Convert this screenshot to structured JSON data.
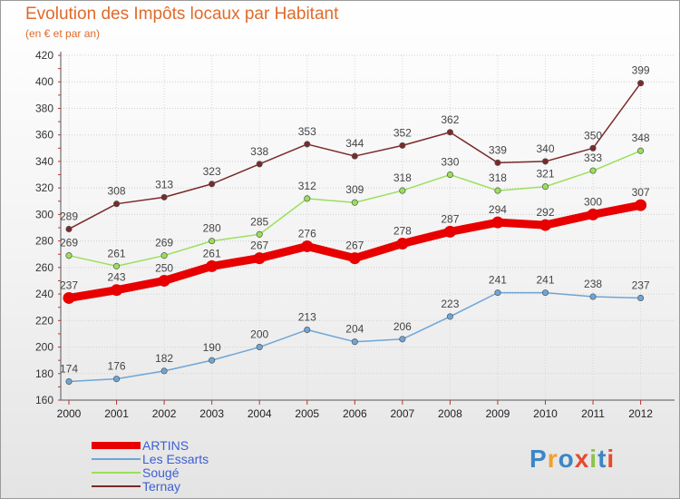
{
  "title": "Evolution des Impôts locaux par Habitant",
  "subtitle": "(en € et par an)",
  "logo": {
    "text": "Proxiti",
    "colors": [
      "#3b86c6",
      "#f0a12a",
      "#3b86c6",
      "#e64a2e",
      "#8bc34a",
      "#3b86c6",
      "#e64a2e"
    ]
  },
  "chart_data": {
    "type": "line",
    "x": [
      "2000",
      "2001",
      "2002",
      "2003",
      "2004",
      "2005",
      "2006",
      "2007",
      "2008",
      "2009",
      "2010",
      "2011",
      "2012"
    ],
    "ylim": [
      160,
      420
    ],
    "yticks": [
      160,
      180,
      200,
      220,
      240,
      260,
      280,
      300,
      320,
      340,
      360,
      380,
      400,
      420
    ],
    "grid": true,
    "legend_position": "bottom-left",
    "series": [
      {
        "name": "ARTINS",
        "color": "#e80000",
        "values": [
          237,
          243,
          250,
          261,
          267,
          276,
          267,
          278,
          287,
          294,
          292,
          300,
          307
        ]
      },
      {
        "name": "Les Essarts",
        "color": "#6fa5d6",
        "values": [
          174,
          176,
          182,
          190,
          200,
          213,
          204,
          206,
          223,
          241,
          241,
          238,
          237
        ]
      },
      {
        "name": "Sougé",
        "color": "#99e05a",
        "values": [
          269,
          261,
          269,
          280,
          285,
          312,
          309,
          318,
          330,
          318,
          321,
          333,
          348
        ]
      },
      {
        "name": "Ternay",
        "color": "#7a2a2a",
        "values": [
          289,
          308,
          313,
          323,
          338,
          353,
          344,
          352,
          362,
          339,
          340,
          350,
          399
        ]
      }
    ]
  }
}
